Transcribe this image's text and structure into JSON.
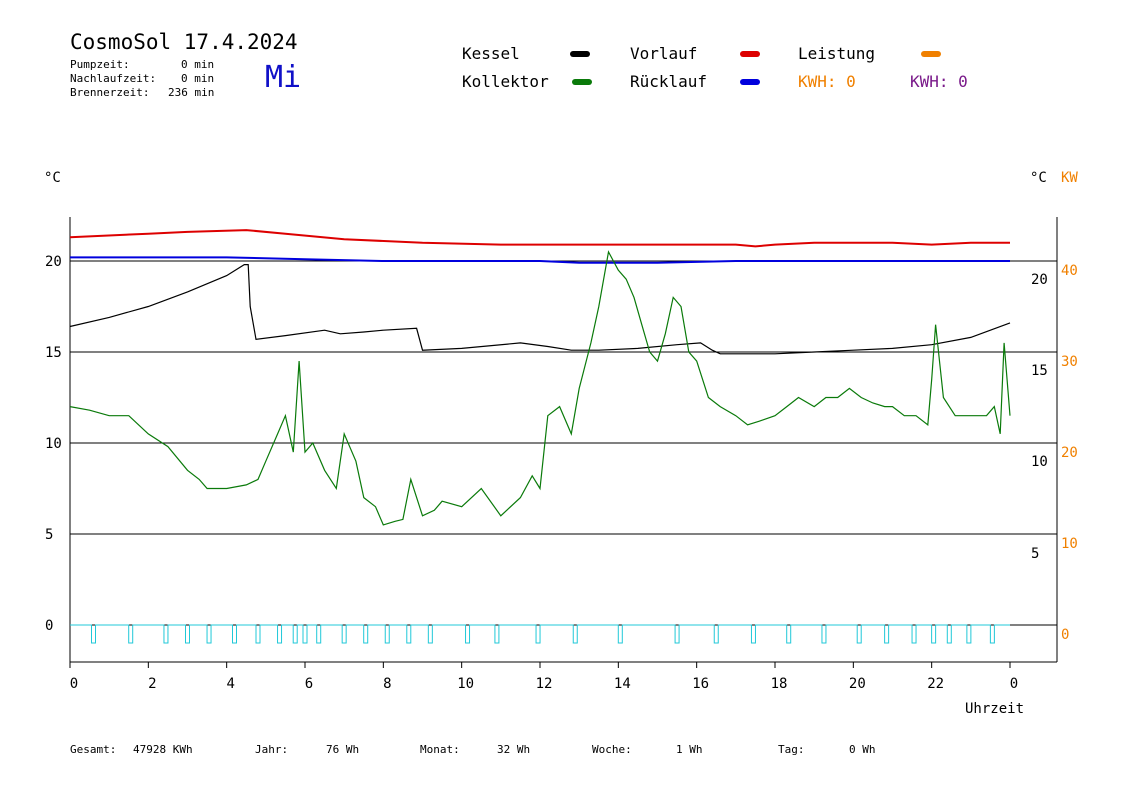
{
  "header": {
    "title": "CosmoSol 17.4.2024",
    "day": "Mi",
    "pumpzeit_label": "Pumpzeit:",
    "pumpzeit_value": "0 min",
    "nachlauf_label": "Nachlaufzeit:",
    "nachlauf_value": "0 min",
    "brenner_label": "Brennerzeit:",
    "brenner_value": "236 min"
  },
  "legend": {
    "kessel": "Kessel",
    "kollektor": "Kollektor",
    "vorlauf": "Vorlauf",
    "ruecklauf": "Rücklauf",
    "leistung": "Leistung",
    "kwh1": "KWH: 0",
    "kwh2": "KWH: 0",
    "colors": {
      "kessel": "#000000",
      "kollektor": "#0a7a0a",
      "vorlauf": "#dd0000",
      "ruecklauf": "#0000dd",
      "leistung": "#f08000",
      "kwh2": "#7a1a8a",
      "pump": "#20c8d8"
    }
  },
  "axes": {
    "left_unit": "°C",
    "right_unit": "°C",
    "right_unit2": "KW",
    "xlabel": "Uhrzeit",
    "left_ticks": [
      "20",
      "15",
      "10",
      "5",
      "0"
    ],
    "right_c_ticks": [
      "20",
      "15",
      "10",
      "5"
    ],
    "right_kw_ticks": [
      "40",
      "30",
      "20",
      "10",
      "0"
    ],
    "x_ticks": [
      "0",
      "2",
      "4",
      "6",
      "8",
      "10",
      "12",
      "14",
      "16",
      "18",
      "20",
      "22",
      "0"
    ]
  },
  "footer": {
    "gesamt_label": "Gesamt:",
    "gesamt_value": "47928 KWh",
    "jahr_label": "Jahr:",
    "jahr_value": "76 Wh",
    "monat_label": "Monat:",
    "monat_value": "32 Wh",
    "woche_label": "Woche:",
    "woche_value": "1 Wh",
    "tag_label": "Tag:",
    "tag_value": "0 Wh"
  },
  "chart_data": {
    "type": "line",
    "xlabel": "Uhrzeit",
    "ylabel": "°C",
    "xlim": [
      0,
      24
    ],
    "ylim": [
      -2,
      22.5
    ],
    "y2lim": [
      -4,
      45
    ],
    "grid_y": [
      0,
      5,
      10,
      15,
      20
    ],
    "series": [
      {
        "name": "Vorlauf",
        "color": "#dd0000",
        "x": [
          0,
          2,
          3,
          4.5,
          5.5,
          7,
          9,
          11,
          13,
          14,
          16,
          17,
          17.5,
          18,
          19,
          20,
          21,
          22,
          23,
          24
        ],
        "y": [
          21.3,
          21.5,
          21.6,
          21.7,
          21.5,
          21.2,
          21.0,
          20.9,
          20.9,
          20.9,
          20.9,
          20.9,
          20.8,
          20.9,
          21.0,
          21.0,
          21.0,
          20.9,
          21.0,
          21.0
        ]
      },
      {
        "name": "Rücklauf",
        "color": "#0000dd",
        "x": [
          0,
          2,
          4,
          6,
          8,
          10,
          12,
          13,
          15,
          17,
          19,
          21,
          23,
          24
        ],
        "y": [
          20.2,
          20.2,
          20.2,
          20.1,
          20.0,
          20.0,
          20.0,
          19.9,
          19.9,
          20.0,
          20.0,
          20.0,
          20.0,
          20.0
        ]
      },
      {
        "name": "Kessel",
        "color": "#000000",
        "x": [
          0,
          1,
          2,
          3,
          4,
          4.45,
          4.55,
          4.6,
          4.75,
          5.5,
          6.5,
          6.9,
          7.5,
          8,
          8.85,
          9.0,
          10,
          11.5,
          12.2,
          12.8,
          13.5,
          14.5,
          15.5,
          16.1,
          16.4,
          16.6,
          18,
          19,
          20,
          21,
          22,
          23,
          24
        ],
        "y": [
          16.4,
          16.9,
          17.5,
          18.3,
          19.2,
          19.8,
          19.8,
          17.5,
          15.7,
          15.9,
          16.2,
          16.0,
          16.1,
          16.2,
          16.3,
          15.1,
          15.2,
          15.5,
          15.3,
          15.1,
          15.1,
          15.2,
          15.4,
          15.5,
          15.1,
          14.9,
          14.9,
          15.0,
          15.1,
          15.2,
          15.4,
          15.8,
          16.6
        ]
      },
      {
        "name": "Kollektor",
        "color": "#0a7a0a",
        "x": [
          0,
          0.5,
          1,
          1.5,
          2,
          2.5,
          3,
          3.3,
          3.5,
          4,
          4.5,
          4.8,
          5.0,
          5.3,
          5.5,
          5.7,
          5.85,
          6.0,
          6.2,
          6.5,
          6.8,
          7.0,
          7.3,
          7.5,
          7.8,
          8.0,
          8.3,
          8.5,
          8.7,
          9.0,
          9.3,
          9.5,
          10.0,
          10.5,
          11.0,
          11.5,
          11.8,
          12.0,
          12.2,
          12.5,
          12.8,
          13.0,
          13.3,
          13.5,
          13.75,
          14.0,
          14.2,
          14.4,
          14.6,
          14.8,
          15.0,
          15.2,
          15.4,
          15.6,
          15.8,
          16.0,
          16.3,
          16.6,
          17.0,
          17.3,
          17.6,
          18.0,
          18.3,
          18.6,
          19.0,
          19.3,
          19.6,
          19.9,
          20.2,
          20.5,
          20.8,
          21.0,
          21.3,
          21.6,
          21.9,
          22.0,
          22.1,
          22.3,
          22.6,
          23.0,
          23.4,
          23.6,
          23.75,
          23.85,
          24.0
        ],
        "y": [
          12.0,
          11.8,
          11.5,
          11.5,
          10.5,
          9.8,
          8.5,
          8.0,
          7.5,
          7.5,
          7.7,
          8.0,
          9.0,
          10.5,
          11.5,
          9.5,
          14.5,
          9.5,
          10.0,
          8.5,
          7.5,
          10.5,
          9.0,
          7.0,
          6.5,
          5.5,
          5.7,
          5.8,
          8.0,
          6.0,
          6.3,
          6.8,
          6.5,
          7.5,
          6.0,
          7.0,
          8.2,
          7.5,
          11.5,
          12.0,
          10.5,
          13.0,
          15.5,
          17.5,
          20.5,
          19.5,
          19.0,
          18.0,
          16.5,
          15.0,
          14.5,
          16.0,
          18.0,
          17.5,
          15.0,
          14.5,
          12.5,
          12.0,
          11.5,
          11.0,
          11.2,
          11.5,
          12.0,
          12.5,
          12.0,
          12.5,
          12.5,
          13.0,
          12.5,
          12.2,
          12.0,
          12.0,
          11.5,
          11.5,
          11.0,
          13.5,
          16.5,
          12.5,
          11.5,
          11.5,
          11.5,
          12.0,
          10.5,
          15.5,
          11.5
        ]
      },
      {
        "name": "Pumpe",
        "color": "#20c8d8",
        "pulses_x": [
          0.6,
          1.55,
          2.45,
          3.0,
          3.55,
          4.2,
          4.8,
          5.35,
          5.75,
          6.0,
          6.35,
          7.0,
          7.55,
          8.1,
          8.65,
          9.2,
          10.15,
          10.9,
          11.95,
          12.9,
          14.05,
          15.5,
          16.5,
          17.45,
          18.35,
          19.25,
          20.15,
          20.85,
          21.55,
          22.05,
          22.45,
          22.95,
          23.55
        ]
      }
    ]
  }
}
